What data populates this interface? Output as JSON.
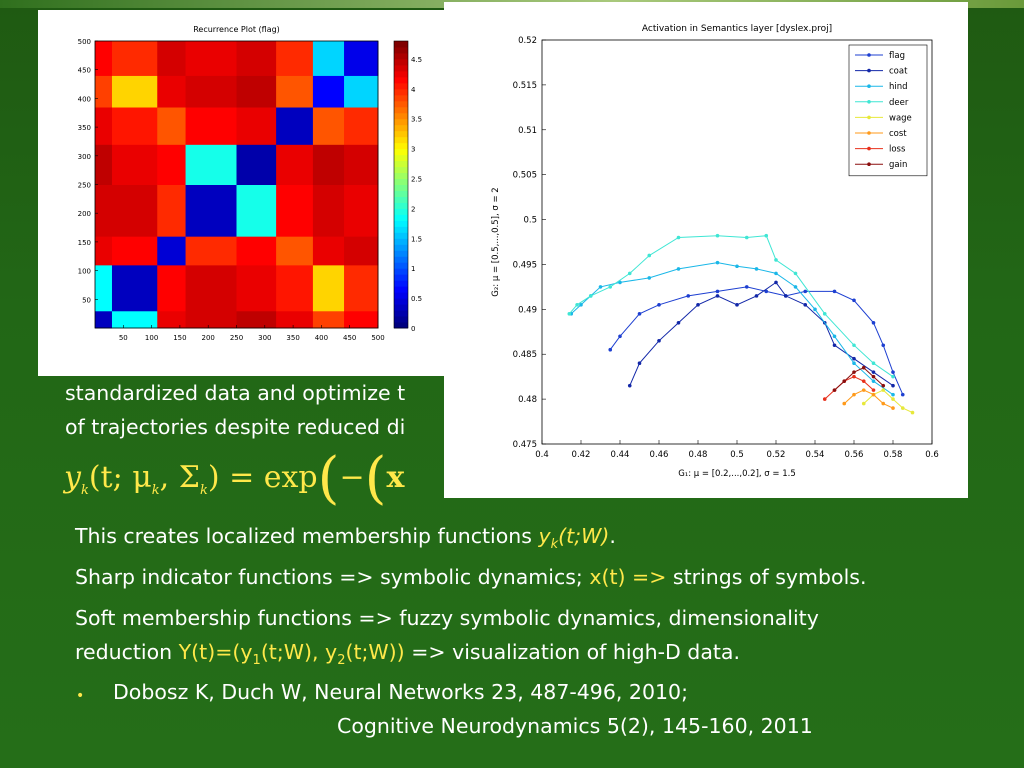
{
  "text": {
    "partial_line1": "standardized data and optimize t",
    "partial_line2": "of trajectories despite reduced di",
    "line_a_pre": "This creates localized membership functions ",
    "line_a_math": "y",
    "line_a_sub": "k",
    "line_a_args": "(t;W)",
    "line_a_end": ".",
    "line_b_pre": "Sharp indicator functions => symbolic dynamics; ",
    "line_b_math": "x(t) =>",
    "line_b_end": " strings of symbols.",
    "line_c1": "Soft membership functions => fuzzy symbolic dynamics, dimensionality",
    "line_c2_pre": "reduction ",
    "line_c2_math": "Y(t)=(y",
    "line_c2_sub1": "1",
    "line_c2_mid": "(t;W), y",
    "line_c2_sub2": "2",
    "line_c2_end_math": "(t;W))",
    "line_c2_end": "  => visualization of high-D data.",
    "ref_line1": "Dobosz K, Duch W, Neural Networks 23, 487-496, 2010;",
    "ref_line2": "Cognitive Neurodynamics 5(2), 145-160, 2011"
  },
  "equation": {
    "lhs": "y",
    "lhs_sub": "k",
    "args": "(t; μ",
    "args_sub": "k",
    "sigma": ", Σ",
    "sigma_sub": "k",
    "rhs": ") = exp",
    "inner": "−",
    "tail": "x"
  },
  "bullet": "•",
  "chart_data": [
    {
      "type": "heatmap",
      "title": "Recurrence Plot (flag)",
      "xticks": [
        "50",
        "100",
        "150",
        "200",
        "250",
        "300",
        "350",
        "400",
        "450",
        "500"
      ],
      "yticks": [
        "500",
        "450",
        "400",
        "350",
        "300",
        "250",
        "200",
        "150",
        "100",
        "50"
      ],
      "xlim": [
        0,
        500
      ],
      "ylim": [
        0,
        500
      ],
      "colorbar_ticks": [
        "4.5",
        "4",
        "3.5",
        "3",
        "2.5",
        "2",
        "1.5",
        "1",
        "0.5",
        "0"
      ],
      "colorbar_range": [
        0,
        4.8
      ],
      "blocks": [
        0,
        30,
        110,
        160,
        250,
        320,
        385,
        440,
        500
      ],
      "block_values": [
        [
          0.3,
          1.8,
          4.3,
          4.4,
          4.5,
          4.3,
          3.9,
          4.2
        ],
        [
          1.8,
          0.3,
          4.2,
          4.4,
          4.3,
          4.1,
          3.2,
          4.0
        ],
        [
          4.3,
          4.2,
          0.4,
          4.0,
          4.2,
          3.8,
          4.3,
          4.4
        ],
        [
          4.4,
          4.4,
          4.0,
          0.3,
          1.9,
          4.2,
          4.4,
          4.3
        ],
        [
          4.5,
          4.3,
          4.2,
          1.9,
          0.2,
          4.3,
          4.5,
          4.4
        ],
        [
          4.3,
          4.1,
          3.8,
          4.2,
          4.3,
          0.3,
          3.8,
          4.0
        ],
        [
          3.9,
          3.2,
          4.3,
          4.4,
          4.5,
          3.8,
          0.6,
          1.6
        ],
        [
          4.2,
          4.0,
          4.4,
          4.3,
          4.4,
          4.0,
          1.6,
          0.5
        ]
      ]
    },
    {
      "type": "line",
      "title": "Activation in Semantics layer [dyslex.proj]",
      "xlabel": "G₁: μ = [0.2,...,0.2], σ = 1.5",
      "ylabel": "G₂: μ = [0.5,...,0.5], σ = 2",
      "xlim": [
        0.4,
        0.6
      ],
      "ylim": [
        0.475,
        0.52
      ],
      "xticks": [
        "0.4",
        "0.42",
        "0.44",
        "0.46",
        "0.48",
        "0.5",
        "0.52",
        "0.54",
        "0.56",
        "0.58",
        "0.6"
      ],
      "yticks": [
        "0.52",
        "0.515",
        "0.51",
        "0.505",
        "0.5",
        "0.495",
        "0.49",
        "0.485",
        "0.48",
        "0.475"
      ],
      "legend_position": "top-right",
      "series": [
        {
          "name": "flag",
          "color": "#1d3fd1",
          "x": [
            0.435,
            0.44,
            0.45,
            0.46,
            0.475,
            0.49,
            0.505,
            0.515,
            0.525,
            0.535,
            0.55,
            0.56,
            0.57,
            0.575,
            0.58,
            0.585
          ],
          "y": [
            0.4855,
            0.487,
            0.4895,
            0.4905,
            0.4915,
            0.492,
            0.4925,
            0.492,
            0.4915,
            0.492,
            0.492,
            0.491,
            0.4885,
            0.486,
            0.483,
            0.4805
          ]
        },
        {
          "name": "coat",
          "color": "#1227a8",
          "x": [
            0.445,
            0.45,
            0.46,
            0.47,
            0.48,
            0.49,
            0.5,
            0.51,
            0.52,
            0.525,
            0.535,
            0.545,
            0.55,
            0.56,
            0.57,
            0.58
          ],
          "y": [
            0.4815,
            0.484,
            0.4865,
            0.4885,
            0.4905,
            0.4915,
            0.4905,
            0.4915,
            0.493,
            0.4915,
            0.4905,
            0.4885,
            0.486,
            0.4845,
            0.483,
            0.4815
          ]
        },
        {
          "name": "hind",
          "color": "#1ab7e8",
          "x": [
            0.415,
            0.42,
            0.425,
            0.43,
            0.44,
            0.455,
            0.47,
            0.49,
            0.5,
            0.51,
            0.52,
            0.53,
            0.54,
            0.55,
            0.56,
            0.57,
            0.58
          ],
          "y": [
            0.4895,
            0.4905,
            0.4915,
            0.4925,
            0.493,
            0.4935,
            0.4945,
            0.4952,
            0.4948,
            0.4945,
            0.494,
            0.4925,
            0.49,
            0.487,
            0.484,
            0.482,
            0.4805
          ]
        },
        {
          "name": "deer",
          "color": "#3fe6d4",
          "x": [
            0.414,
            0.418,
            0.425,
            0.435,
            0.445,
            0.455,
            0.47,
            0.49,
            0.505,
            0.515,
            0.52,
            0.53,
            0.545,
            0.56,
            0.57,
            0.58
          ],
          "y": [
            0.4895,
            0.4905,
            0.4915,
            0.4925,
            0.494,
            0.496,
            0.498,
            0.4982,
            0.498,
            0.4982,
            0.4955,
            0.494,
            0.4895,
            0.486,
            0.484,
            0.4825
          ]
        },
        {
          "name": "wage",
          "color": "#e7e83a",
          "x": [
            0.565,
            0.57,
            0.575,
            0.58,
            0.585,
            0.59
          ],
          "y": [
            0.4795,
            0.4805,
            0.481,
            0.48,
            0.479,
            0.4785
          ]
        },
        {
          "name": "cost",
          "color": "#ff9a1a",
          "x": [
            0.555,
            0.56,
            0.565,
            0.57,
            0.575,
            0.58
          ],
          "y": [
            0.4795,
            0.4805,
            0.481,
            0.4805,
            0.4795,
            0.479
          ]
        },
        {
          "name": "loss",
          "color": "#e8301c",
          "x": [
            0.545,
            0.55,
            0.555,
            0.56,
            0.565,
            0.57
          ],
          "y": [
            0.48,
            0.481,
            0.482,
            0.4825,
            0.482,
            0.481
          ]
        },
        {
          "name": "gain",
          "color": "#8b0f0f",
          "x": [
            0.55,
            0.555,
            0.56,
            0.565,
            0.57,
            0.575
          ],
          "y": [
            0.481,
            0.482,
            0.483,
            0.4835,
            0.4825,
            0.4815
          ]
        }
      ]
    }
  ]
}
